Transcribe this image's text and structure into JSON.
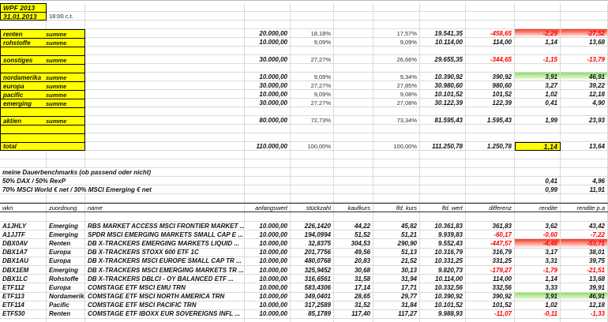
{
  "meta": {
    "workbook_title": "WPF 2013",
    "report_date": "31.01.2013",
    "time_note": "18:00 c.t."
  },
  "colors": {
    "highlight_yellow": "#ffff00",
    "negative_red": "#fe0000",
    "gradient_red": "#f93a24",
    "gradient_green": "#8ce063",
    "gridline": "#dadada"
  },
  "summary": {
    "rows": [
      {
        "type": "title",
        "label": "WPF 2013"
      },
      {
        "type": "date",
        "label": "31.01.2013",
        "note": "18:00 c.t."
      },
      {
        "type": "spacer"
      },
      {
        "type": "group",
        "label": "renten",
        "tag": "summe",
        "aw": "20.000,00",
        "p1": "18,18%",
        "p2": "17,57%",
        "lw": "19.541,35",
        "diff": "-458,65",
        "ren": "-2,29",
        "rpa": "-27,52",
        "neg": true,
        "hl": "red"
      },
      {
        "type": "group",
        "label": "rohstoffe",
        "tag": "summe",
        "aw": "10.000,00",
        "p1": "9,09%",
        "p2": "9,09%",
        "lw": "10.114,00",
        "diff": "114,00",
        "ren": "1,14",
        "rpa": "13,68"
      },
      {
        "type": "yspacer"
      },
      {
        "type": "group",
        "label": "sonstiges",
        "tag": "summe",
        "aw": "30.000,00",
        "p1": "27,27%",
        "p2": "26,66%",
        "lw": "29.655,35",
        "diff": "-344,65",
        "ren": "-1,15",
        "rpa": "-13,79",
        "neg": true
      },
      {
        "type": "yspacer"
      },
      {
        "type": "group",
        "label": "nordamerika",
        "tag": "summe",
        "aw": "10.000,00",
        "p1": "9,09%",
        "p2": "9,34%",
        "lw": "10.390,92",
        "diff": "390,92",
        "ren": "3,91",
        "rpa": "46,91",
        "hl": "green"
      },
      {
        "type": "group",
        "label": "europa",
        "tag": "summe",
        "aw": "30.000,00",
        "p1": "27,27%",
        "p2": "27,85%",
        "lw": "30.980,60",
        "diff": "980,60",
        "ren": "3,27",
        "rpa": "39,22"
      },
      {
        "type": "group",
        "label": "pacific",
        "tag": "summe",
        "aw": "10.000,00",
        "p1": "9,09%",
        "p2": "9,08%",
        "lw": "10.101,52",
        "diff": "101,52",
        "ren": "1,02",
        "rpa": "12,18"
      },
      {
        "type": "group",
        "label": "emerging",
        "tag": "summe",
        "aw": "30.000,00",
        "p1": "27,27%",
        "p2": "27,08%",
        "lw": "30.122,39",
        "diff": "122,39",
        "ren": "0,41",
        "rpa": "4,90"
      },
      {
        "type": "yspacer"
      },
      {
        "type": "group",
        "label": "aktien",
        "tag": "summe",
        "aw": "80.000,00",
        "p1": "72,73%",
        "p2": "73,34%",
        "lw": "81.595,43",
        "diff": "1.595,43",
        "ren": "1,99",
        "rpa": "23,93"
      },
      {
        "type": "yspacer"
      },
      {
        "type": "yspacer"
      },
      {
        "type": "total",
        "label": "total",
        "aw": "110.000,00",
        "p1": "100,00%",
        "p2": "100,00%",
        "lw": "111.250,78",
        "diff": "1.250,78",
        "ren": "1,14",
        "rpa": "13,64"
      },
      {
        "type": "spacer"
      },
      {
        "type": "spacer"
      },
      {
        "type": "caption",
        "label": "meine Dauerbenchmarks (ob passend oder nicht)"
      },
      {
        "type": "bench",
        "label": "50% DAX / 50% RexP",
        "ren": "0,41",
        "rpa": "4,96"
      },
      {
        "type": "bench",
        "label": "70% MSCI World € net / 30% MSCI Emerging € net",
        "ren": "0,99",
        "rpa": "11,91"
      },
      {
        "type": "spacer"
      }
    ]
  },
  "holdings": {
    "columns": [
      "wkn",
      "zuordnung",
      "name",
      "anfangswert",
      "stückzahl",
      "kaufkurs",
      "lfd. kurs",
      "lfd. wert",
      "differenz",
      "rendite",
      "rendite p.a"
    ],
    "rows": [
      {
        "wkn": "A1JHLY",
        "zuo": "Emerging",
        "name": "RBS MARKET ACCESS MSCI FRONTIER MARKET ...",
        "aw": "10.000,00",
        "sz": "226,1420",
        "kk": "44,22",
        "lk": "45,82",
        "lw": "10.361,83",
        "diff": "361,83",
        "ren": "3,62",
        "rpa": "43,42"
      },
      {
        "wkn": "A1JJTF",
        "zuo": "Emerging",
        "name": "SPDR MSCI EMERGING MARKETS SMALL CAP E ...",
        "aw": "10.000,00",
        "sz": "194,0994",
        "kk": "51,52",
        "lk": "51,21",
        "lw": "9.939,83",
        "diff": "-60,17",
        "ren": "-0,60",
        "rpa": "-7,22",
        "neg": true
      },
      {
        "wkn": "DBX0AV",
        "zuo": "Renten",
        "name": "DB X-TRACKERS EMERGING MARKETS LIQUID ...",
        "aw": "10.000,00",
        "sz": "32,8375",
        "kk": "304,53",
        "lk": "290,90",
        "lw": "9.552,43",
        "diff": "-447,57",
        "ren": "-4,48",
        "rpa": "-53,71",
        "neg": true,
        "hl": "red"
      },
      {
        "wkn": "DBX1A7",
        "zuo": "Europa",
        "name": "DB X-TRACKERS STOXX 600 ETF 1C",
        "aw": "10.000,00",
        "sz": "201,7756",
        "kk": "49,56",
        "lk": "51,13",
        "lw": "10.316,79",
        "diff": "316,79",
        "ren": "3,17",
        "rpa": "38,01"
      },
      {
        "wkn": "DBX1AU",
        "zuo": "Europa",
        "name": "DB X-TRACKERS MSCI EUROPE SMALL CAP TR ...",
        "aw": "10.000,00",
        "sz": "480,0768",
        "kk": "20,83",
        "lk": "21,52",
        "lw": "10.331,25",
        "diff": "331,25",
        "ren": "3,31",
        "rpa": "39,75"
      },
      {
        "wkn": "DBX1EM",
        "zuo": "Emerging",
        "name": "DB X-TRACKERS MSCI EMERGING MARKETS TR ...",
        "aw": "10.000,00",
        "sz": "325,9452",
        "kk": "30,68",
        "lk": "30,13",
        "lw": "9.820,73",
        "diff": "-179,27",
        "ren": "-1,79",
        "rpa": "-21,51",
        "neg": true
      },
      {
        "wkn": "DBX1LC",
        "zuo": "Rohstoffe",
        "name": "DB X-TRACKERS DBLCI - OY BALANCED ETF ...",
        "aw": "10.000,00",
        "sz": "316,6561",
        "kk": "31,58",
        "lk": "31,94",
        "lw": "10.114,00",
        "diff": "114,00",
        "ren": "1,14",
        "rpa": "13,68"
      },
      {
        "wkn": "ETF112",
        "zuo": "Europa",
        "name": "COMSTAGE ETF MSCI EMU TRN",
        "aw": "10.000,00",
        "sz": "583,4306",
        "kk": "17,14",
        "lk": "17,71",
        "lw": "10.332,56",
        "diff": "332,56",
        "ren": "3,33",
        "rpa": "39,91"
      },
      {
        "wkn": "ETF113",
        "zuo": "Nordamerika",
        "name": "COMSTAGE ETF MSCI NORTH AMERICA TRN",
        "aw": "10.000,00",
        "sz": "349,0401",
        "kk": "28,65",
        "lk": "29,77",
        "lw": "10.390,92",
        "diff": "390,92",
        "ren": "3,91",
        "rpa": "46,91",
        "hl": "green"
      },
      {
        "wkn": "ETF114",
        "zuo": "Pacific",
        "name": "COMSTAGE ETF MSCI PACIFIC TRN",
        "aw": "10.000,00",
        "sz": "317,2589",
        "kk": "31,52",
        "lk": "31,84",
        "lw": "10.101,52",
        "diff": "101,52",
        "ren": "1,02",
        "rpa": "12,18"
      },
      {
        "wkn": "ETF530",
        "zuo": "Renten",
        "name": "COMSTAGE ETF IBOXX EUR SOVEREIGNS INFL ...",
        "aw": "10.000,00",
        "sz": "85,1789",
        "kk": "117,40",
        "lk": "117,27",
        "lw": "9.988,93",
        "diff": "-11,07",
        "ren": "-0,11",
        "rpa": "-1,33",
        "neg": true
      }
    ]
  }
}
